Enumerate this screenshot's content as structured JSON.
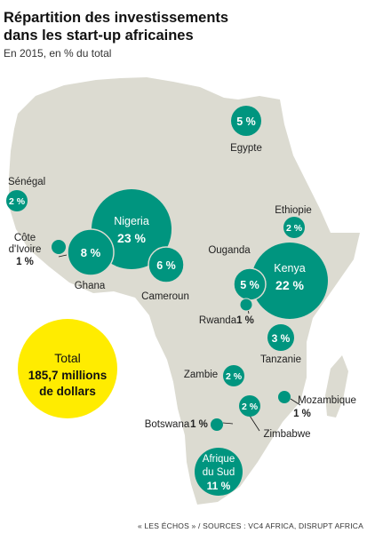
{
  "colors": {
    "land": "#dcdbd1",
    "bubble": "#00957f",
    "total": "#ffec00",
    "text": "#111111"
  },
  "chart_data": {
    "type": "bubble-map",
    "title_lines": [
      "Répartition des investissements",
      "dans les start-up africaines"
    ],
    "subtitle": "En 2015, en % du total",
    "unit": "%",
    "countries": [
      {
        "name": "Egypte",
        "value": 5,
        "label": "5 %"
      },
      {
        "name": "Sénégal",
        "value": 2,
        "label": "2 %"
      },
      {
        "name": "Côte d'Ivoire",
        "value": 1,
        "label": "1 %"
      },
      {
        "name": "Ghana",
        "value": 8,
        "label": "8 %"
      },
      {
        "name": "Nigeria",
        "value": 23,
        "label": "23 %"
      },
      {
        "name": "Cameroun",
        "value": 6,
        "label": "6 %"
      },
      {
        "name": "Ethiopie",
        "value": 2,
        "label": "2 %"
      },
      {
        "name": "Ouganda",
        "value": 5,
        "label": "5 %"
      },
      {
        "name": "Kenya",
        "value": 22,
        "label": "22 %"
      },
      {
        "name": "Rwanda",
        "value": 1,
        "label": "1 %"
      },
      {
        "name": "Tanzanie",
        "value": 3,
        "label": "3 %"
      },
      {
        "name": "Zambie",
        "value": 2,
        "label": "2 %"
      },
      {
        "name": "Mozambique",
        "value": 1,
        "label": "1 %"
      },
      {
        "name": "Zimbabwe",
        "value": 2,
        "label": "2 %"
      },
      {
        "name": "Botswana",
        "value": 1,
        "label": "1 %"
      },
      {
        "name": "Afrique du Sud",
        "value": 11,
        "label": "11 %"
      }
    ],
    "total": {
      "label": "Total",
      "amount_line1": "185,7 millions",
      "amount_line2": "de dollars"
    },
    "source": "« LES ÉCHOS » / SOURCES : VC4 AFRICA, DISRUPT AFRICA"
  },
  "text": {
    "senegal": "Sénégal",
    "cote1": "Côte",
    "cote2": "d'Ivoire",
    "ghana": "Ghana",
    "cameroun": "Cameroun",
    "egypte": "Egypte",
    "ethiopie": "Ethiopie",
    "ouganda": "Ouganda",
    "rwanda": "Rwanda",
    "tanzanie": "Tanzanie",
    "zambie": "Zambie",
    "mozambique": "Mozambique",
    "zimbabwe": "Zimbabwe",
    "botswana": "Botswana",
    "nigeria": "Nigeria",
    "kenya": "Kenya",
    "afs1": "Afrique",
    "afs2": "du Sud"
  }
}
